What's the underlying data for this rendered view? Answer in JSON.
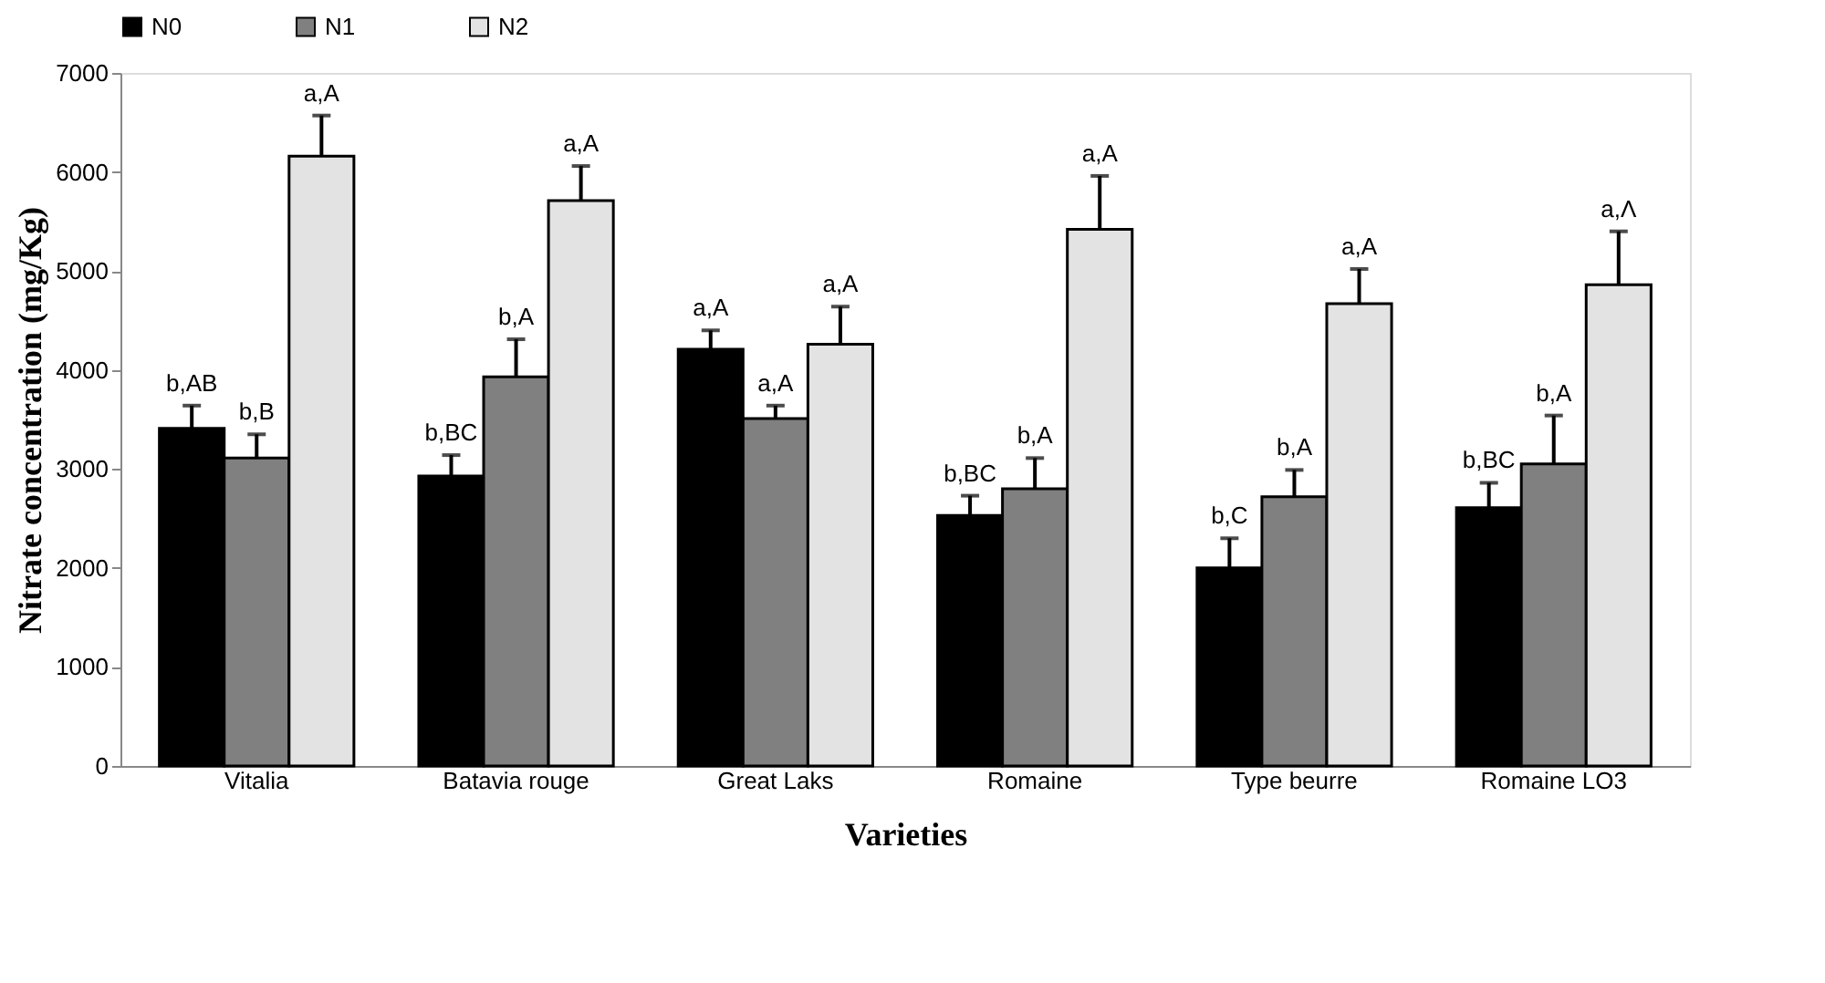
{
  "chart_data": {
    "type": "bar",
    "xlabel": "Varieties",
    "ylabel": "Nitrate concentration (mg/Kg)",
    "categories": [
      "Vitalia",
      "Batavia rouge",
      "Great Laks",
      "Romaine",
      "Type beurre",
      "Romaine LO3"
    ],
    "series": [
      {
        "name": "N0",
        "color": "#000000",
        "values": [
          3410,
          2930,
          4210,
          2530,
          2000,
          2610
        ],
        "errors": [
          230,
          210,
          190,
          200,
          300,
          250
        ],
        "value_labels": [
          "b,AB",
          "b,BC",
          "a,A",
          "b,BC",
          "b,C",
          "b,BC"
        ]
      },
      {
        "name": "N1",
        "color": "#808080",
        "values": [
          3110,
          3930,
          3510,
          2800,
          2720,
          3050
        ],
        "errors": [
          240,
          380,
          130,
          310,
          270,
          490
        ],
        "value_labels": [
          "b,B",
          "b,A",
          "a,A",
          "b,A",
          "b,A",
          "b,A"
        ]
      },
      {
        "name": "N2",
        "color": "#e3e3e3",
        "values": [
          6160,
          5710,
          4260,
          5420,
          4670,
          4860
        ],
        "errors": [
          410,
          350,
          380,
          540,
          350,
          540
        ],
        "value_labels": [
          "a,A",
          "a,A",
          "a,A",
          "a,A",
          "a,A",
          "a,Λ"
        ]
      }
    ],
    "ylim": [
      0,
      7000
    ],
    "yticks": [
      0,
      1000,
      2000,
      3000,
      4000,
      5000,
      6000,
      7000
    ],
    "grid": false,
    "legend": "top",
    "marker": "square"
  }
}
